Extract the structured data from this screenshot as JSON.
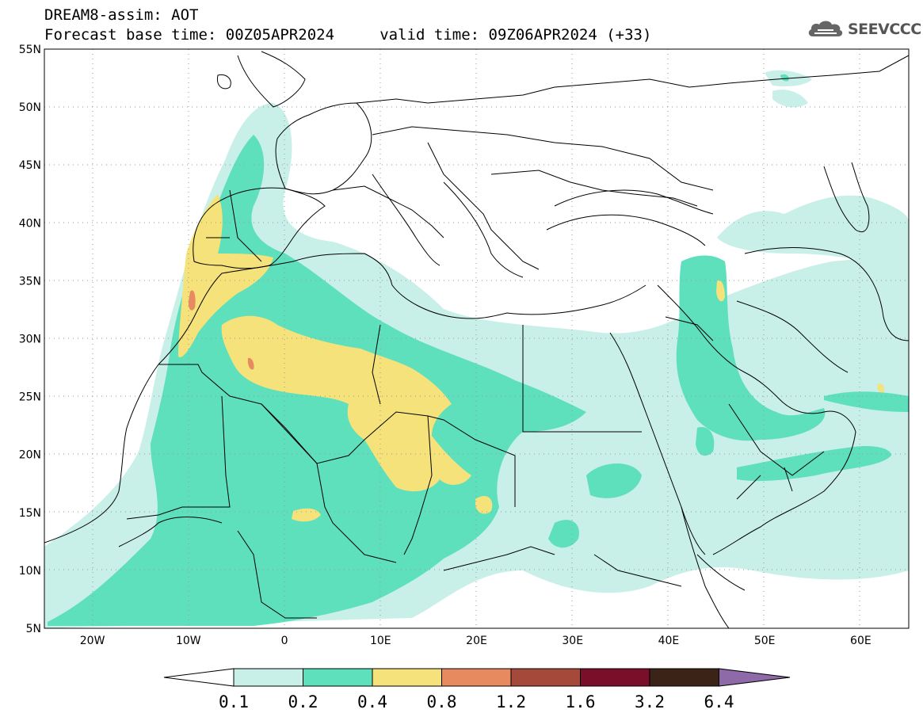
{
  "header": {
    "title_line1": "DREAM8-assim: AOT",
    "title_line2": "Forecast base time: 00Z05APR2024     valid time: 09Z06APR2024 (+33)",
    "logo_text": "SEEVCCC",
    "logo_icon": "cloud-icon"
  },
  "map": {
    "lon_range": [
      -25,
      65
    ],
    "lat_range": [
      5,
      55
    ],
    "lon_labels": [
      "20W",
      "10W",
      "0",
      "10E",
      "20E",
      "30E",
      "40E",
      "50E",
      "60E"
    ],
    "lat_labels": [
      "55N",
      "50N",
      "45N",
      "40N",
      "35N",
      "30N",
      "25N",
      "20N",
      "15N",
      "10N",
      "5N"
    ],
    "grid": "dotted"
  },
  "colorbar": {
    "ticks": [
      "0.1",
      "0.2",
      "0.4",
      "0.8",
      "1.2",
      "1.6",
      "3.2",
      "6.4"
    ],
    "colors": [
      "#ffffff",
      "#c8f0e8",
      "#5ee0bc",
      "#f5e27a",
      "#e78a60",
      "#a54a3a",
      "#7a0f2a",
      "#3b2417",
      "#8e6aa8"
    ]
  }
}
